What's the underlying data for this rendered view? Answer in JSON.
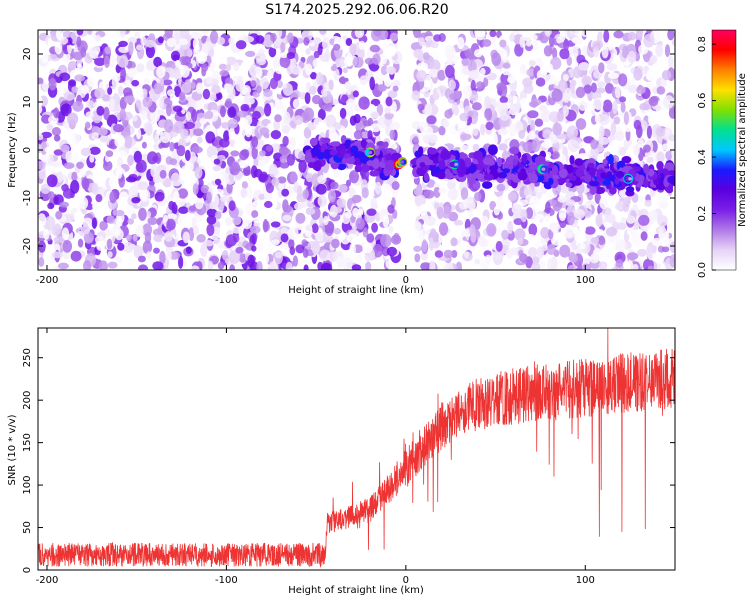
{
  "title": "S174.2025.292.06.06.R20",
  "chart_data": [
    {
      "type": "heatmap",
      "xlabel": "Height of straight line (km)",
      "ylabel": "Frequency (Hz)",
      "xlim": [
        -205,
        150
      ],
      "ylim": [
        -25,
        25
      ],
      "x_ticks": [
        -200,
        -100,
        0,
        100
      ],
      "x_tick_labels": [
        "-200",
        "-100",
        "0",
        "100"
      ],
      "y_ticks": [
        -20,
        -10,
        0,
        10,
        20
      ],
      "y_tick_labels": [
        "-20",
        "-10",
        "0",
        "10",
        "20"
      ],
      "colorbar": {
        "label": "Normalized spectral amplitude",
        "range": [
          0.0,
          0.85
        ],
        "ticks": [
          0.0,
          0.2,
          0.4,
          0.6,
          0.8
        ],
        "tick_labels": [
          "0.0",
          "0.2",
          "0.4",
          "0.6",
          "0.8"
        ],
        "colors": [
          "#ffffff",
          "#e6d3f7",
          "#b07ae8",
          "#7b1fe8",
          "#5a00e0",
          "#1a1aff",
          "#00c8ff",
          "#00e090",
          "#80e000",
          "#ffe000",
          "#ff8000",
          "#ff0000",
          "#ff0060"
        ]
      },
      "signal_track": [
        {
          "x": -55,
          "y": -1.0
        },
        {
          "x": -30,
          "y": -0.5
        },
        {
          "x": -20,
          "y": -1.5
        },
        {
          "x": -5,
          "y": -3.0
        },
        {
          "x": 0,
          "y": -3.0
        },
        {
          "x": 20,
          "y": -3.0
        },
        {
          "x": 40,
          "y": -3.5
        },
        {
          "x": 60,
          "y": -3.8
        },
        {
          "x": 80,
          "y": -4.5
        },
        {
          "x": 100,
          "y": -5.0
        },
        {
          "x": 120,
          "y": -5.5
        },
        {
          "x": 150,
          "y": -6.0
        }
      ],
      "hotspots": [
        {
          "x": -20,
          "y": -0.5,
          "amp": 0.6
        },
        {
          "x": -4,
          "y": -3.0,
          "amp": 0.8
        },
        {
          "x": -2,
          "y": -2.5,
          "amp": 0.7
        },
        {
          "x": 27,
          "y": -3.0,
          "amp": 0.5
        },
        {
          "x": 76,
          "y": -4.0,
          "amp": 0.5
        },
        {
          "x": 124,
          "y": -6.0,
          "amp": 0.45
        }
      ],
      "gap_x": [
        -5,
        5
      ]
    },
    {
      "type": "line",
      "xlabel": "Height of straight line (km)",
      "ylabel": "SNR (10 * v/v)",
      "xlim": [
        -205,
        150
      ],
      "ylim": [
        0,
        285
      ],
      "x_ticks": [
        -200,
        -100,
        0,
        100
      ],
      "x_tick_labels": [
        "-200",
        "-100",
        "0",
        "100"
      ],
      "y_ticks": [
        0,
        50,
        100,
        150,
        200,
        250
      ],
      "y_tick_labels": [
        "0",
        "50",
        "100",
        "150",
        "200",
        "250"
      ],
      "series": [
        {
          "color": "#ee3333",
          "envelope": [
            {
              "x": -205,
              "mean": 18
            },
            {
              "x": -100,
              "mean": 18
            },
            {
              "x": -45,
              "mean": 18
            },
            {
              "x": -44,
              "mean": 55
            },
            {
              "x": -20,
              "mean": 70
            },
            {
              "x": 0,
              "mean": 120
            },
            {
              "x": 20,
              "mean": 170
            },
            {
              "x": 40,
              "mean": 195
            },
            {
              "x": 60,
              "mean": 205
            },
            {
              "x": 80,
              "mean": 210
            },
            {
              "x": 100,
              "mean": 215
            },
            {
              "x": 120,
              "mean": 220
            },
            {
              "x": 150,
              "mean": 225
            }
          ]
        }
      ]
    }
  ]
}
